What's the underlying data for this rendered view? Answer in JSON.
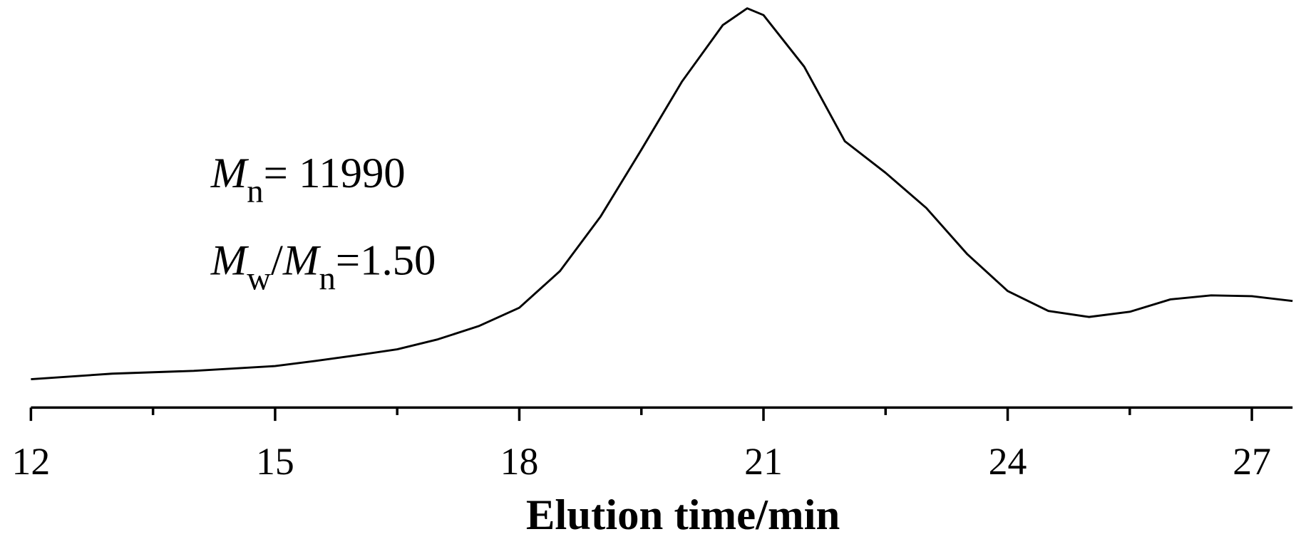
{
  "chart_data": {
    "type": "line",
    "xlabel": "Elution time/min",
    "x": [
      12,
      13,
      14,
      15,
      15.5,
      16,
      16.5,
      17,
      17.5,
      18,
      18.5,
      19,
      19.5,
      20,
      20.5,
      20.8,
      21,
      21.5,
      22,
      22.5,
      23,
      23.5,
      24,
      24.5,
      25,
      25.5,
      26,
      26.5,
      27,
      27.5
    ],
    "series": [
      {
        "color": "#000000",
        "values": [
          0.071,
          0.085,
          0.092,
          0.104,
          0.117,
          0.131,
          0.146,
          0.171,
          0.204,
          0.25,
          0.342,
          0.479,
          0.646,
          0.817,
          0.958,
          1.0,
          0.983,
          0.854,
          0.667,
          0.588,
          0.5,
          0.385,
          0.292,
          0.242,
          0.227,
          0.24,
          0.271,
          0.281,
          0.279,
          0.267
        ]
      }
    ],
    "xlim": [
      12,
      27.5
    ],
    "xticks": [
      12,
      15,
      18,
      21,
      24,
      27
    ],
    "minor_xticks": [
      13.5,
      16.5,
      19.5,
      22.5,
      25.5
    ],
    "ylim": [
      0,
      1
    ],
    "annotations": [
      [
        {
          "text": "M",
          "style": "italic"
        },
        {
          "text": "n",
          "style": "sub"
        },
        {
          "text": "= 11990",
          "style": "normal"
        }
      ],
      [
        {
          "text": "M",
          "style": "italic"
        },
        {
          "text": "w",
          "style": "sub"
        },
        {
          "text": "/",
          "style": "normal"
        },
        {
          "text": "M",
          "style": "italic"
        },
        {
          "text": "n",
          "style": "sub"
        },
        {
          "text": "=1.50",
          "style": "normal"
        }
      ]
    ]
  }
}
